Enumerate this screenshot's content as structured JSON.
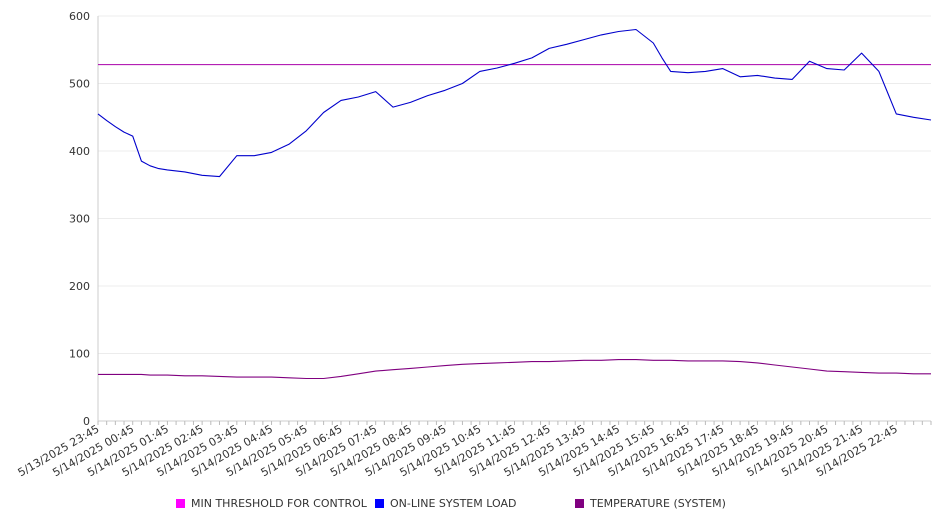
{
  "chart_data": {
    "type": "line",
    "title": "",
    "xlabel": "",
    "ylabel": "",
    "ylim": [
      0,
      600
    ],
    "yticks": [
      0,
      100,
      200,
      300,
      400,
      500,
      600
    ],
    "grid": "horizontal",
    "legend_position": "bottom",
    "x_tick_labels": [
      "5/13/2025 23:45",
      "5/14/2025 00:45",
      "5/14/2025 01:45",
      "5/14/2025 02:45",
      "5/14/2025 03:45",
      "5/14/2025 04:45",
      "5/14/2025 05:45",
      "5/14/2025 06:45",
      "5/14/2025 07:45",
      "5/14/2025 08:45",
      "5/14/2025 09:45",
      "5/14/2025 10:45",
      "5/14/2025 11:45",
      "5/14/2025 12:45",
      "5/14/2025 13:45",
      "5/14/2025 14:45",
      "5/14/2025 15:45",
      "5/14/2025 16:45",
      "5/14/2025 17:45",
      "5/14/2025 18:45",
      "5/14/2025 19:45",
      "5/14/2025 20:45",
      "5/14/2025 21:45",
      "5/14/2025 22:45"
    ],
    "x_hours": [
      0,
      0.25,
      0.5,
      0.75,
      1,
      1.25,
      1.5,
      1.75,
      2,
      2.5,
      3,
      3.5,
      4,
      4.5,
      5,
      5.5,
      6,
      6.5,
      7,
      7.5,
      8,
      8.5,
      9,
      9.5,
      10,
      10.5,
      11,
      11.5,
      12,
      12.5,
      13,
      13.5,
      14,
      14.5,
      15,
      15.5,
      16,
      16.25,
      16.5,
      17,
      17.5,
      18,
      18.5,
      19,
      19.5,
      20,
      20.5,
      21,
      21.5,
      22,
      22.5,
      23,
      23.5,
      24
    ],
    "series": [
      {
        "name": "MIN THRESHOLD FOR CONTROL",
        "color": "#aa00aa",
        "values": "constant",
        "constant_value": 528
      },
      {
        "name": "ON-LINE SYSTEM LOAD",
        "color": "#0000cc",
        "values": [
          455,
          445,
          436,
          428,
          422,
          385,
          378,
          374,
          372,
          369,
          364,
          362,
          393,
          393,
          398,
          410,
          430,
          457,
          475,
          480,
          488,
          465,
          472,
          482,
          490,
          500,
          518,
          523,
          530,
          538,
          552,
          558,
          565,
          572,
          577,
          580,
          560,
          538,
          518,
          516,
          518,
          522,
          510,
          512,
          508,
          506,
          533,
          522,
          520,
          545,
          518,
          455,
          450,
          446
        ]
      },
      {
        "name": "TEMPERATURE (SYSTEM)",
        "color": "#800080",
        "values": [
          69,
          69,
          69,
          69,
          69,
          69,
          68,
          68,
          68,
          67,
          67,
          66,
          65,
          65,
          65,
          64,
          63,
          63,
          66,
          70,
          74,
          76,
          78,
          80,
          82,
          84,
          85,
          86,
          87,
          88,
          88,
          89,
          90,
          90,
          91,
          91,
          90,
          90,
          90,
          89,
          89,
          89,
          88,
          86,
          83,
          80,
          77,
          74,
          73,
          72,
          71,
          71,
          70,
          70
        ]
      }
    ]
  }
}
